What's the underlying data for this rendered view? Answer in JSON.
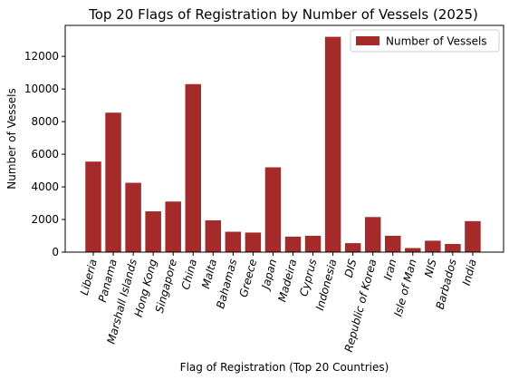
{
  "chart_data": {
    "type": "bar",
    "title": "Top 20 Flags of Registration by Number of Vessels (2025)",
    "xlabel": "Flag of Registration (Top 20 Countries)",
    "ylabel": "Number of Vessels",
    "categories": [
      "Liberia",
      "Panama",
      "Marshall Islands",
      "Hong Kong",
      "Singapore",
      "China",
      "Malta",
      "Bahamas",
      "Greece",
      "Japan",
      "Madeira",
      "Cyprus",
      "Indonesia",
      "DIS",
      "Republic of Korea",
      "Iran",
      "Isle of Man",
      "NIS",
      "Barbados",
      "India"
    ],
    "series": [
      {
        "name": "Number of Vessels",
        "values": [
          5550,
          8550,
          4250,
          2500,
          3100,
          10300,
          1950,
          1250,
          1200,
          5200,
          950,
          1000,
          13200,
          550,
          2150,
          1000,
          250,
          700,
          500,
          1900
        ]
      }
    ],
    "yticks": [
      "0",
      "2000",
      "4000",
      "6000",
      "8000",
      "10000",
      "12000"
    ],
    "ylim": [
      0,
      13900
    ],
    "legend_position": "top-right",
    "grid": false,
    "colors": {
      "bar": "#a52a2a",
      "axis": "#000000",
      "background": "#ffffff"
    }
  }
}
